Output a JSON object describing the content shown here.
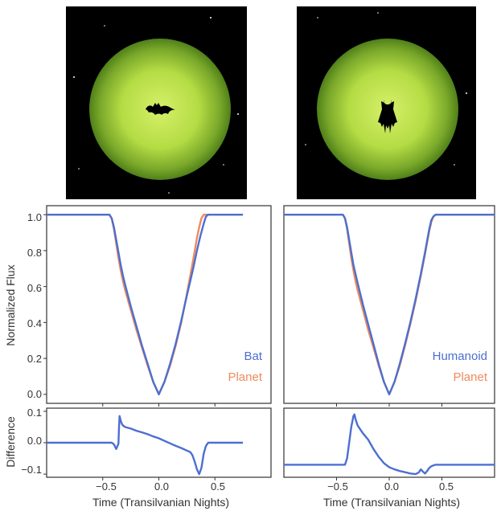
{
  "colors": {
    "blue": "#4c6fd0",
    "orange": "#f08a5d",
    "sky": "#000000",
    "disk_center": "#d6f06a",
    "disk_edge": "#50801a",
    "silhouette": "#000000"
  },
  "panels": [
    {
      "id": "bat",
      "image": {
        "subject": "bat-silhouette-icon",
        "star_field": true
      },
      "legend": {
        "transiter": "Bat",
        "reference": "Planet",
        "placement": "bottom-right"
      }
    },
    {
      "id": "humanoid",
      "image": {
        "subject": "humanoid-silhouette-icon",
        "star_field": true
      },
      "legend": {
        "transiter": "Humanoid",
        "reference": "Planet",
        "placement": "bottom-right"
      }
    }
  ],
  "shared": {
    "xlabel": "Time (Transilvanian Nights)",
    "xticks": [
      "−0.5",
      "0.0",
      "0.5"
    ],
    "flux_ylabel": "Normalized Flux",
    "flux_yticks": [
      "1.0",
      "0.8",
      "0.6",
      "0.4",
      "0.2",
      "0.0"
    ],
    "diff_ylabel": "Difference",
    "diff_yticks": [
      "0.1",
      "0.0",
      "−0.1"
    ]
  },
  "chart_data": [
    {
      "type": "line",
      "title": "",
      "xlabel": "Time (Transilvanian Nights)",
      "ylabel": "Normalized Flux",
      "xlim": [
        -1.0,
        1.0
      ],
      "ylim": [
        -0.05,
        1.05
      ],
      "xticks": [
        -0.5,
        0.0,
        0.5
      ],
      "yticks": [
        0.0,
        0.2,
        0.4,
        0.6,
        0.8,
        1.0
      ],
      "grid": false,
      "legend": "bottom-right",
      "series": [
        {
          "name": "Bat",
          "color": "#4c6fd0",
          "x": [
            -1.0,
            -0.44,
            -0.42,
            -0.4,
            -0.38,
            -0.36,
            -0.34,
            -0.32,
            -0.3,
            -0.25,
            -0.2,
            -0.15,
            -0.1,
            -0.05,
            0.0,
            0.05,
            0.1,
            0.15,
            0.2,
            0.25,
            0.28,
            0.31,
            0.34,
            0.37,
            0.4,
            0.42,
            0.44,
            0.75
          ],
          "y": [
            1.0,
            1.0,
            0.98,
            0.93,
            0.86,
            0.79,
            0.72,
            0.66,
            0.61,
            0.49,
            0.38,
            0.27,
            0.17,
            0.07,
            0.0,
            0.07,
            0.17,
            0.28,
            0.41,
            0.55,
            0.63,
            0.71,
            0.8,
            0.88,
            0.95,
            0.99,
            1.0,
            1.0
          ]
        },
        {
          "name": "Planet",
          "color": "#f08a5d",
          "x": [
            -1.0,
            -0.44,
            -0.42,
            -0.4,
            -0.38,
            -0.36,
            -0.34,
            -0.32,
            -0.3,
            -0.25,
            -0.2,
            -0.15,
            -0.1,
            -0.05,
            0.0,
            0.05,
            0.1,
            0.15,
            0.2,
            0.25,
            0.28,
            0.31,
            0.34,
            0.36,
            0.38,
            0.4,
            0.42,
            0.75
          ],
          "y": [
            1.0,
            1.0,
            0.98,
            0.92,
            0.84,
            0.76,
            0.69,
            0.63,
            0.58,
            0.47,
            0.36,
            0.26,
            0.16,
            0.07,
            0.0,
            0.07,
            0.16,
            0.27,
            0.4,
            0.56,
            0.66,
            0.76,
            0.87,
            0.93,
            0.98,
            1.0,
            1.0,
            1.0
          ]
        }
      ]
    },
    {
      "type": "line",
      "title": "",
      "xlabel": "Time (Transilvanian Nights)",
      "ylabel": "Difference",
      "xlim": [
        -1.0,
        1.0
      ],
      "ylim": [
        -0.11,
        0.11
      ],
      "xticks": [
        -0.5,
        0.0,
        0.5
      ],
      "yticks": [
        -0.1,
        0.0,
        0.1
      ],
      "grid": false,
      "series": [
        {
          "name": "Bat",
          "color": "#4c6fd0",
          "x": [
            -1.0,
            -0.42,
            -0.4,
            -0.38,
            -0.36,
            -0.355,
            -0.35,
            -0.34,
            -0.33,
            -0.32,
            -0.3,
            -0.25,
            -0.2,
            -0.15,
            -0.1,
            -0.05,
            0.0,
            0.05,
            0.1,
            0.15,
            0.2,
            0.25,
            0.28,
            0.3,
            0.32,
            0.34,
            0.36,
            0.38,
            0.4,
            0.42,
            0.44,
            0.75
          ],
          "y": [
            0.0,
            0.0,
            -0.005,
            -0.02,
            -0.003,
            0.05,
            0.085,
            0.07,
            0.06,
            0.055,
            0.05,
            0.045,
            0.038,
            0.033,
            0.027,
            0.02,
            0.014,
            0.006,
            -0.002,
            -0.01,
            -0.017,
            -0.025,
            -0.03,
            -0.04,
            -0.06,
            -0.085,
            -0.1,
            -0.08,
            -0.035,
            -0.01,
            0.0,
            0.0
          ]
        }
      ]
    },
    {
      "type": "line",
      "title": "",
      "xlabel": "Time (Transilvanian Nights)",
      "ylabel": "Normalized Flux",
      "xlim": [
        -1.0,
        1.0
      ],
      "ylim": [
        -0.05,
        1.05
      ],
      "xticks": [
        -0.5,
        0.0,
        0.5
      ],
      "yticks": [
        0.0,
        0.2,
        0.4,
        0.6,
        0.8,
        1.0
      ],
      "grid": false,
      "legend": "bottom-right",
      "series": [
        {
          "name": "Humanoid",
          "color": "#4c6fd0",
          "x": [
            -1.0,
            -0.44,
            -0.42,
            -0.4,
            -0.38,
            -0.36,
            -0.34,
            -0.32,
            -0.3,
            -0.25,
            -0.2,
            -0.15,
            -0.1,
            -0.05,
            0.0,
            0.05,
            0.1,
            0.15,
            0.2,
            0.25,
            0.3,
            0.34,
            0.38,
            0.4,
            0.42,
            0.44,
            1.0
          ],
          "y": [
            1.0,
            1.0,
            0.98,
            0.93,
            0.86,
            0.79,
            0.72,
            0.67,
            0.62,
            0.5,
            0.39,
            0.28,
            0.17,
            0.07,
            0.0,
            0.07,
            0.17,
            0.28,
            0.4,
            0.53,
            0.67,
            0.79,
            0.92,
            0.97,
            0.99,
            1.0,
            1.0
          ]
        },
        {
          "name": "Planet",
          "color": "#f08a5d",
          "x": [
            -1.0,
            -0.44,
            -0.42,
            -0.4,
            -0.38,
            -0.36,
            -0.34,
            -0.32,
            -0.3,
            -0.25,
            -0.2,
            -0.15,
            -0.1,
            -0.05,
            0.0,
            0.05,
            0.1,
            0.15,
            0.2,
            0.25,
            0.3,
            0.34,
            0.38,
            0.4,
            0.42,
            0.44,
            1.0
          ],
          "y": [
            1.0,
            1.0,
            0.98,
            0.92,
            0.84,
            0.76,
            0.69,
            0.63,
            0.58,
            0.47,
            0.36,
            0.26,
            0.16,
            0.07,
            0.0,
            0.07,
            0.16,
            0.27,
            0.39,
            0.52,
            0.66,
            0.78,
            0.91,
            0.96,
            0.99,
            1.0,
            1.0
          ]
        }
      ]
    },
    {
      "type": "line",
      "title": "",
      "xlabel": "Time (Transilvanian Nights)",
      "ylabel": "Difference",
      "xlim": [
        -1.0,
        1.0
      ],
      "ylim": [
        -0.11,
        0.11
      ],
      "xticks": [
        -0.5,
        0.0,
        0.5
      ],
      "yticks": [
        -0.1,
        0.0,
        0.1
      ],
      "grid": false,
      "series": [
        {
          "name": "Humanoid",
          "color": "#4c6fd0",
          "x": [
            -1.0,
            -0.42,
            -0.4,
            -0.38,
            -0.36,
            -0.34,
            -0.33,
            -0.32,
            -0.3,
            -0.28,
            -0.25,
            -0.2,
            -0.15,
            -0.1,
            -0.05,
            0.0,
            0.05,
            0.1,
            0.15,
            0.2,
            0.25,
            0.28,
            0.3,
            0.32,
            0.34,
            0.36,
            0.38,
            0.4,
            0.44,
            1.0
          ],
          "y": [
            -0.07,
            -0.07,
            -0.05,
            0.0,
            0.05,
            0.085,
            0.09,
            0.075,
            0.055,
            0.045,
            0.03,
            0.01,
            -0.02,
            -0.045,
            -0.065,
            -0.078,
            -0.085,
            -0.09,
            -0.094,
            -0.098,
            -0.1,
            -0.095,
            -0.085,
            -0.092,
            -0.098,
            -0.09,
            -0.08,
            -0.075,
            -0.07,
            -0.07
          ]
        }
      ]
    }
  ]
}
